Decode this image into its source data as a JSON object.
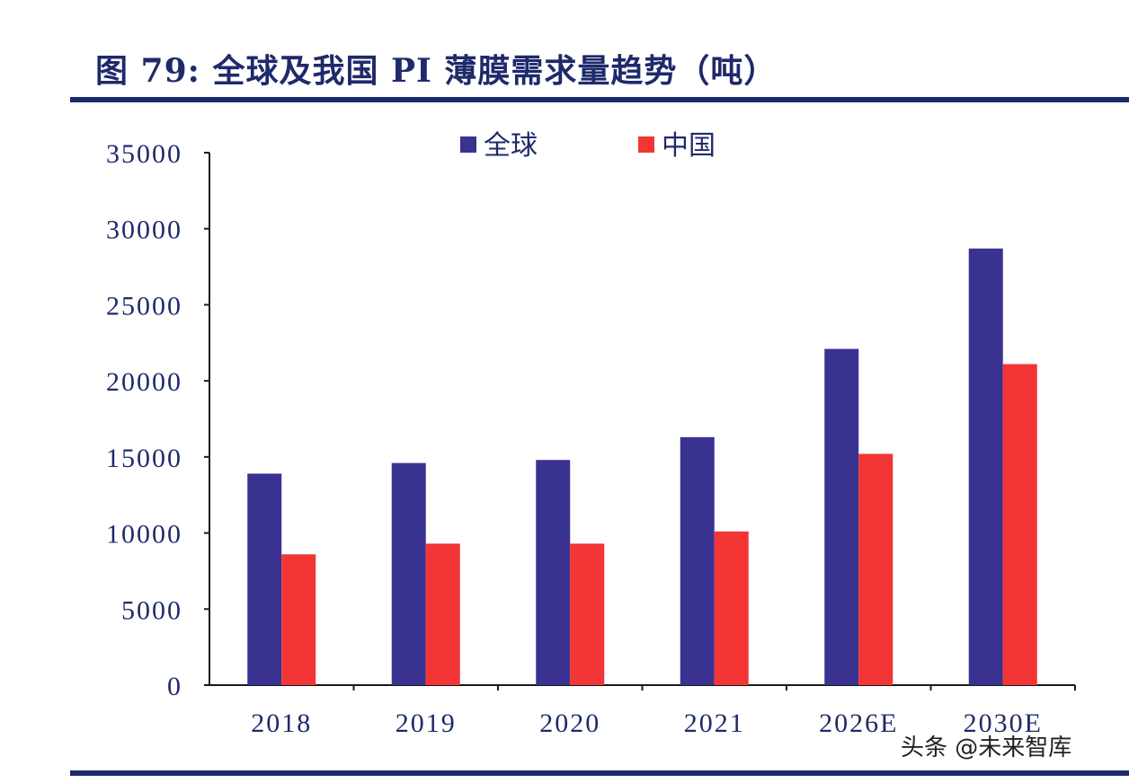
{
  "figure_title": "图 79:  全球及我国 PI 薄膜需求量趋势（吨）",
  "watermark": "头条 @未来智库",
  "colors": {
    "global": "#3a3290",
    "china": "#f33535",
    "axis": "#1a1a1a",
    "rule": "#1f2a6b",
    "text": "#1f2a6b"
  },
  "chart_data": {
    "type": "bar",
    "title": "图 79:  全球及我国 PI 薄膜需求量趋势（吨）",
    "categories": [
      "2018",
      "2019",
      "2020",
      "2021",
      "2026E",
      "2030E"
    ],
    "series": [
      {
        "name": "全球",
        "values": [
          13900,
          14600,
          14800,
          16300,
          22100,
          28700
        ]
      },
      {
        "name": "中国",
        "values": [
          8600,
          9300,
          9300,
          10100,
          15200,
          21100
        ]
      }
    ],
    "ylim": [
      0,
      35000
    ],
    "yticks": [
      "0",
      "5000",
      "10000",
      "15000",
      "20000",
      "25000",
      "30000",
      "35000"
    ],
    "xlabel": "",
    "ylabel": "",
    "grid": false,
    "legend": "top-center"
  }
}
